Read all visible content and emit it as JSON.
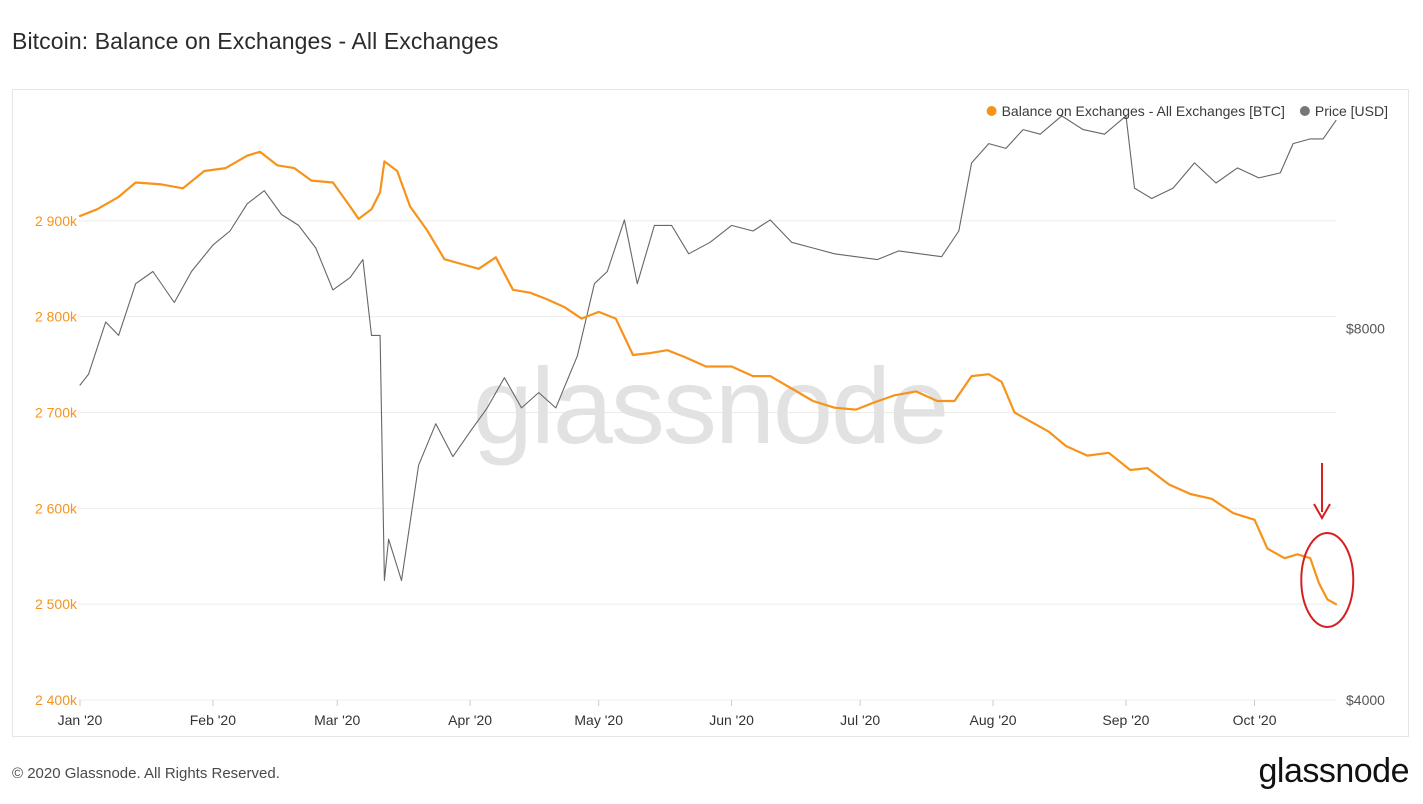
{
  "page": {
    "title": "Bitcoin: Balance on Exchanges - All Exchanges",
    "footer": "© 2020 Glassnode. All Rights Reserved.",
    "brand": "glassnode",
    "watermark": "glassnode"
  },
  "chart_data": {
    "type": "line",
    "title": "Bitcoin: Balance on Exchanges - All Exchanges",
    "x_tick_labels": [
      "Jan '20",
      "Feb '20",
      "Mar '20",
      "Apr '20",
      "May '20",
      "Jun '20",
      "Jul '20",
      "Aug '20",
      "Sep '20",
      "Oct '20"
    ],
    "x_tick_dates": [
      "2020-01-01",
      "2020-02-01",
      "2020-03-01",
      "2020-04-01",
      "2020-05-01",
      "2020-06-01",
      "2020-07-01",
      "2020-08-01",
      "2020-09-01",
      "2020-10-01"
    ],
    "x_range": [
      "2020-01-01",
      "2020-10-20"
    ],
    "y_left": {
      "ticks": [
        2400000,
        2500000,
        2600000,
        2700000,
        2800000,
        2900000
      ],
      "tick_labels": [
        "2 400k",
        "2 500k",
        "2 600k",
        "2 700k",
        "2 800k",
        "2 900k"
      ],
      "range": [
        2400000,
        3000000
      ],
      "color": "#f7931a"
    },
    "y_right": {
      "scale": "log",
      "ticks": [
        4000,
        8000
      ],
      "tick_labels": [
        "$4000",
        "$8000"
      ],
      "range": [
        4000,
        11700
      ],
      "color": "#555555"
    },
    "grid": true,
    "legend_position": "top-right",
    "series": [
      {
        "name": "Balance on Exchanges - All Exchanges [BTC]",
        "axis": "left",
        "color": "#f7931a",
        "points": [
          [
            "2020-01-01",
            2905000
          ],
          [
            "2020-01-05",
            2912000
          ],
          [
            "2020-01-10",
            2925000
          ],
          [
            "2020-01-14",
            2940000
          ],
          [
            "2020-01-20",
            2938000
          ],
          [
            "2020-01-25",
            2934000
          ],
          [
            "2020-01-30",
            2952000
          ],
          [
            "2020-02-04",
            2955000
          ],
          [
            "2020-02-09",
            2968000
          ],
          [
            "2020-02-12",
            2972000
          ],
          [
            "2020-02-16",
            2958000
          ],
          [
            "2020-02-20",
            2955000
          ],
          [
            "2020-02-24",
            2942000
          ],
          [
            "2020-02-29",
            2940000
          ],
          [
            "2020-03-04",
            2915000
          ],
          [
            "2020-03-06",
            2902000
          ],
          [
            "2020-03-09",
            2912000
          ],
          [
            "2020-03-11",
            2930000
          ],
          [
            "2020-03-12",
            2962000
          ],
          [
            "2020-03-15",
            2952000
          ],
          [
            "2020-03-18",
            2915000
          ],
          [
            "2020-03-22",
            2890000
          ],
          [
            "2020-03-26",
            2860000
          ],
          [
            "2020-03-30",
            2855000
          ],
          [
            "2020-04-03",
            2850000
          ],
          [
            "2020-04-07",
            2862000
          ],
          [
            "2020-04-11",
            2828000
          ],
          [
            "2020-04-15",
            2825000
          ],
          [
            "2020-04-19",
            2818000
          ],
          [
            "2020-04-23",
            2810000
          ],
          [
            "2020-04-27",
            2798000
          ],
          [
            "2020-05-01",
            2805000
          ],
          [
            "2020-05-05",
            2798000
          ],
          [
            "2020-05-09",
            2760000
          ],
          [
            "2020-05-13",
            2762000
          ],
          [
            "2020-05-17",
            2765000
          ],
          [
            "2020-05-21",
            2758000
          ],
          [
            "2020-05-26",
            2748000
          ],
          [
            "2020-06-01",
            2748000
          ],
          [
            "2020-06-06",
            2738000
          ],
          [
            "2020-06-10",
            2738000
          ],
          [
            "2020-06-15",
            2725000
          ],
          [
            "2020-06-20",
            2712000
          ],
          [
            "2020-06-25",
            2705000
          ],
          [
            "2020-06-30",
            2703000
          ],
          [
            "2020-07-04",
            2710000
          ],
          [
            "2020-07-09",
            2718000
          ],
          [
            "2020-07-14",
            2722000
          ],
          [
            "2020-07-19",
            2712000
          ],
          [
            "2020-07-23",
            2712000
          ],
          [
            "2020-07-27",
            2738000
          ],
          [
            "2020-07-31",
            2740000
          ],
          [
            "2020-08-03",
            2732000
          ],
          [
            "2020-08-06",
            2700000
          ],
          [
            "2020-08-10",
            2690000
          ],
          [
            "2020-08-14",
            2680000
          ],
          [
            "2020-08-18",
            2665000
          ],
          [
            "2020-08-23",
            2655000
          ],
          [
            "2020-08-28",
            2658000
          ],
          [
            "2020-09-02",
            2640000
          ],
          [
            "2020-09-06",
            2642000
          ],
          [
            "2020-09-11",
            2625000
          ],
          [
            "2020-09-16",
            2615000
          ],
          [
            "2020-09-21",
            2610000
          ],
          [
            "2020-09-26",
            2595000
          ],
          [
            "2020-10-01",
            2588000
          ],
          [
            "2020-10-04",
            2558000
          ],
          [
            "2020-10-08",
            2548000
          ],
          [
            "2020-10-11",
            2552000
          ],
          [
            "2020-10-14",
            2548000
          ],
          [
            "2020-10-16",
            2522000
          ],
          [
            "2020-10-18",
            2505000
          ],
          [
            "2020-10-20",
            2500000
          ]
        ]
      },
      {
        "name": "Price [USD]",
        "axis": "right",
        "color": "#666666",
        "points": [
          [
            "2020-01-01",
            7200
          ],
          [
            "2020-01-03",
            7350
          ],
          [
            "2020-01-07",
            8100
          ],
          [
            "2020-01-10",
            7900
          ],
          [
            "2020-01-14",
            8700
          ],
          [
            "2020-01-18",
            8900
          ],
          [
            "2020-01-23",
            8400
          ],
          [
            "2020-01-27",
            8900
          ],
          [
            "2020-02-01",
            9350
          ],
          [
            "2020-02-05",
            9600
          ],
          [
            "2020-02-09",
            10100
          ],
          [
            "2020-02-13",
            10350
          ],
          [
            "2020-02-17",
            9900
          ],
          [
            "2020-02-21",
            9700
          ],
          [
            "2020-02-25",
            9300
          ],
          [
            "2020-02-29",
            8600
          ],
          [
            "2020-03-04",
            8800
          ],
          [
            "2020-03-07",
            9100
          ],
          [
            "2020-03-09",
            7900
          ],
          [
            "2020-03-11",
            7900
          ],
          [
            "2020-03-12",
            5000
          ],
          [
            "2020-03-13",
            5400
          ],
          [
            "2020-03-16",
            5000
          ],
          [
            "2020-03-20",
            6200
          ],
          [
            "2020-03-24",
            6700
          ],
          [
            "2020-03-28",
            6300
          ],
          [
            "2020-04-01",
            6600
          ],
          [
            "2020-04-05",
            6900
          ],
          [
            "2020-04-09",
            7300
          ],
          [
            "2020-04-13",
            6900
          ],
          [
            "2020-04-17",
            7100
          ],
          [
            "2020-04-21",
            6900
          ],
          [
            "2020-04-26",
            7600
          ],
          [
            "2020-04-30",
            8700
          ],
          [
            "2020-05-03",
            8900
          ],
          [
            "2020-05-07",
            9800
          ],
          [
            "2020-05-10",
            8700
          ],
          [
            "2020-05-14",
            9700
          ],
          [
            "2020-05-18",
            9700
          ],
          [
            "2020-05-22",
            9200
          ],
          [
            "2020-05-27",
            9400
          ],
          [
            "2020-06-01",
            9700
          ],
          [
            "2020-06-06",
            9600
          ],
          [
            "2020-06-10",
            9800
          ],
          [
            "2020-06-15",
            9400
          ],
          [
            "2020-06-20",
            9300
          ],
          [
            "2020-06-25",
            9200
          ],
          [
            "2020-06-30",
            9150
          ],
          [
            "2020-07-05",
            9100
          ],
          [
            "2020-07-10",
            9250
          ],
          [
            "2020-07-15",
            9200
          ],
          [
            "2020-07-20",
            9150
          ],
          [
            "2020-07-24",
            9600
          ],
          [
            "2020-07-27",
            10900
          ],
          [
            "2020-07-31",
            11300
          ],
          [
            "2020-08-04",
            11200
          ],
          [
            "2020-08-08",
            11600
          ],
          [
            "2020-08-12",
            11500
          ],
          [
            "2020-08-17",
            11900
          ],
          [
            "2020-08-22",
            11600
          ],
          [
            "2020-08-27",
            11500
          ],
          [
            "2020-09-01",
            11900
          ],
          [
            "2020-09-03",
            10400
          ],
          [
            "2020-09-07",
            10200
          ],
          [
            "2020-09-12",
            10400
          ],
          [
            "2020-09-17",
            10900
          ],
          [
            "2020-09-22",
            10500
          ],
          [
            "2020-09-27",
            10800
          ],
          [
            "2020-10-02",
            10600
          ],
          [
            "2020-10-07",
            10700
          ],
          [
            "2020-10-10",
            11300
          ],
          [
            "2020-10-14",
            11400
          ],
          [
            "2020-10-17",
            11400
          ],
          [
            "2020-10-20",
            11800
          ]
        ]
      }
    ],
    "annotation": {
      "description_shape": "red arrow and ellipse",
      "color": "#d42020",
      "date_range": [
        "2020-10-15",
        "2020-10-20"
      ]
    }
  }
}
